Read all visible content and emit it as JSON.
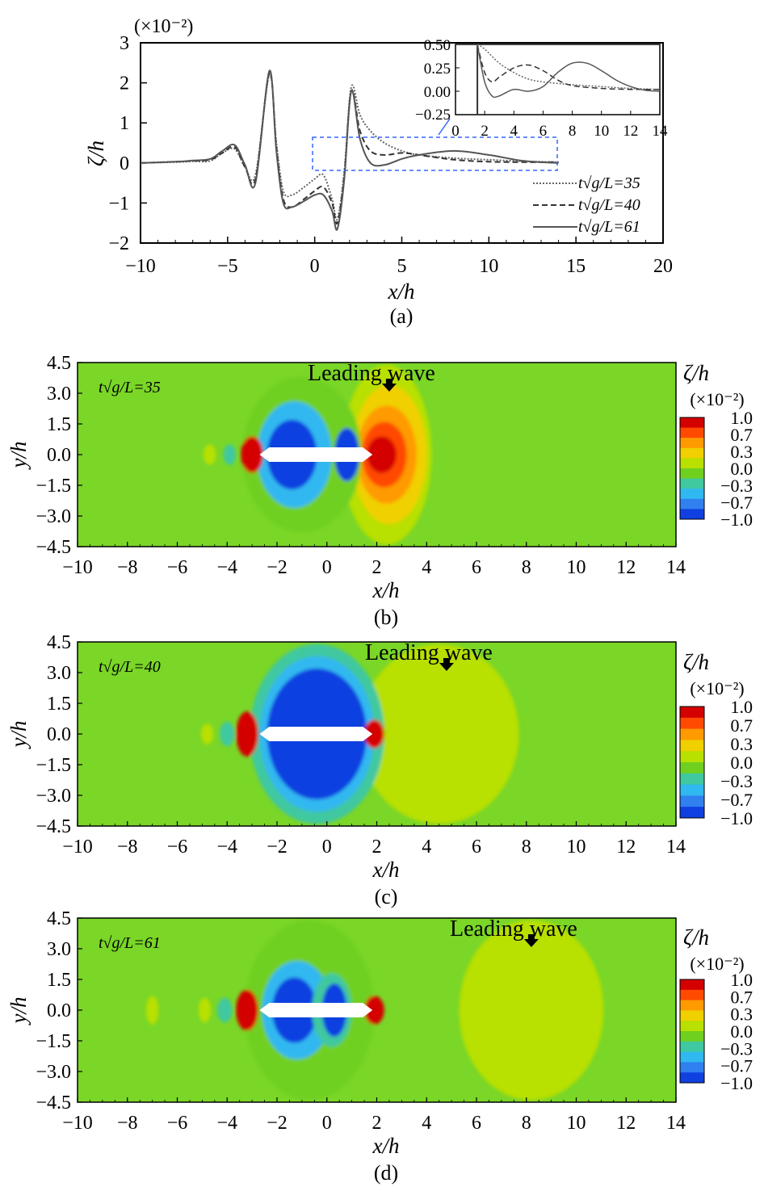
{
  "panels_a": {
    "caption": "(a)",
    "scale_note": "(×10⁻²)",
    "xlabel": "x/h",
    "ylabel": "ζ/h",
    "x_ticks": [
      "−10",
      "−5",
      "0",
      "5",
      "10",
      "15",
      "20"
    ],
    "y_ticks": [
      "3",
      "2",
      "1",
      "0",
      "−1",
      "−2"
    ],
    "inset_x_ticks": [
      "0",
      "2",
      "4",
      "6",
      "8",
      "10",
      "12",
      "14"
    ],
    "inset_y_ticks": [
      "0.50",
      "0.25",
      "0.00",
      "−0.25"
    ],
    "legend": [
      "t√g/L=35",
      "t√g/L=40",
      "t√g/L=61"
    ]
  },
  "contour_panels": [
    {
      "caption": "(b)",
      "time_label": "t√g/L=35",
      "leading_wave": "Leading wave",
      "xlabel": "x/h",
      "ylabel": "y/h"
    },
    {
      "caption": "(c)",
      "time_label": "t√g/L=40",
      "leading_wave": "Leading wave",
      "xlabel": "x/h",
      "ylabel": "y/h"
    },
    {
      "caption": "(d)",
      "time_label": "t√g/L=61",
      "leading_wave": "Leading wave",
      "xlabel": "x/h",
      "ylabel": "y/h"
    }
  ],
  "contour_axes": {
    "x_ticks": [
      "−10",
      "−8",
      "−6",
      "−4",
      "−2",
      "0",
      "2",
      "4",
      "6",
      "8",
      "10",
      "12",
      "14"
    ],
    "y_ticks": [
      "4.5",
      "3.0",
      "1.5",
      "0.0",
      "−1.5",
      "−3.0",
      "−4.5"
    ]
  },
  "colorbar": {
    "title": "ζ/h",
    "scale": "(×10⁻²)",
    "labels": [
      "1.0",
      "0.7",
      "0.3",
      "0.0",
      "−0.3",
      "−0.7",
      "−1.0"
    ],
    "colors": [
      "#d40000",
      "#ff4a00",
      "#ff9a00",
      "#f0d000",
      "#b8e000",
      "#6fd020",
      "#40c8a0",
      "#30b8f0",
      "#3080f0",
      "#1040e0"
    ]
  },
  "chart_data": [
    {
      "type": "line",
      "panel": "(a)",
      "xlabel": "x/h",
      "ylabel": "ζ/h",
      "y_scale_factor": "×10⁻²",
      "xlim": [
        -10,
        20
      ],
      "ylim": [
        -2,
        3
      ],
      "series": [
        {
          "name": "t√g/L=35",
          "style": "dotted",
          "x": [
            -10,
            -8,
            -7,
            -6,
            -5.3,
            -4.6,
            -4,
            -3.4,
            -2.6,
            -2.2,
            -1.8,
            -1.3,
            -0.6,
            0,
            0.5,
            1,
            1.3,
            1.7,
            2.1,
            2.6,
            3.2,
            4,
            5,
            6,
            8,
            10,
            12,
            14
          ],
          "y": [
            0,
            0.02,
            0.04,
            0.05,
            0.25,
            0.35,
            -0.1,
            -0.3,
            2.2,
            0.5,
            -0.7,
            -0.8,
            -0.6,
            -0.4,
            -0.3,
            -0.9,
            -1.4,
            -0.2,
            1.9,
            1.2,
            0.8,
            0.5,
            0.3,
            0.2,
            0.12,
            0.08,
            0.04,
            0.02
          ]
        },
        {
          "name": "t√g/L=40",
          "style": "dashed",
          "x": [
            -10,
            -8,
            -7,
            -6,
            -5.3,
            -4.6,
            -4,
            -3.4,
            -2.6,
            -2.2,
            -1.8,
            -1.3,
            -0.6,
            0,
            0.5,
            1,
            1.3,
            1.7,
            2.1,
            2.6,
            3.2,
            4,
            5,
            6,
            8,
            10,
            12,
            14
          ],
          "y": [
            0,
            0.03,
            0.05,
            0.08,
            0.25,
            0.4,
            -0.1,
            -0.4,
            2.25,
            0.4,
            -0.9,
            -1.1,
            -0.9,
            -0.7,
            -0.6,
            -1.0,
            -1.5,
            -0.3,
            1.8,
            0.8,
            0.3,
            0.2,
            0.25,
            0.2,
            0.08,
            0.03,
            0.02,
            0.02
          ]
        },
        {
          "name": "t√g/L=61",
          "style": "solid",
          "x": [
            -10,
            -8,
            -7,
            -6,
            -5.3,
            -4.6,
            -4,
            -3.4,
            -2.6,
            -2.2,
            -1.8,
            -1.3,
            -0.6,
            0,
            0.5,
            1,
            1.3,
            1.7,
            2.1,
            2.6,
            3.2,
            4,
            5,
            6,
            8,
            10,
            12,
            14
          ],
          "y": [
            0,
            0.03,
            0.06,
            0.1,
            0.3,
            0.45,
            -0.05,
            -0.5,
            2.3,
            0.3,
            -1.0,
            -1.1,
            -0.95,
            -0.8,
            -0.8,
            -1.2,
            -1.65,
            -0.4,
            1.8,
            0.6,
            0.0,
            -0.05,
            0.1,
            0.2,
            0.3,
            0.2,
            0.05,
            0.0
          ]
        }
      ]
    },
    {
      "type": "line",
      "panel": "(a) inset",
      "xlim": [
        0,
        14
      ],
      "ylim": [
        -0.25,
        0.5
      ],
      "series": [
        {
          "name": "t√g/L=35",
          "style": "dotted",
          "x": [
            1.5,
            2,
            3,
            4,
            5,
            6,
            8,
            10,
            12,
            14
          ],
          "y": [
            0.5,
            0.45,
            0.3,
            0.2,
            0.13,
            0.1,
            0.07,
            0.05,
            0.03,
            0.02
          ]
        },
        {
          "name": "t√g/L=40",
          "style": "dashed",
          "x": [
            1.5,
            2,
            2.5,
            3,
            4,
            5,
            6,
            7,
            8,
            10,
            12,
            14
          ],
          "y": [
            0.5,
            0.2,
            0.1,
            0.15,
            0.25,
            0.28,
            0.22,
            0.12,
            0.06,
            0.03,
            0.02,
            0.02
          ]
        },
        {
          "name": "t√g/L=61",
          "style": "solid",
          "x": [
            1.5,
            2,
            2.5,
            3,
            4,
            5,
            6,
            7,
            8,
            9,
            10,
            11,
            12,
            13,
            14
          ],
          "y": [
            0.5,
            0.1,
            -0.05,
            -0.05,
            0.02,
            0.0,
            0.05,
            0.2,
            0.3,
            0.3,
            0.22,
            0.12,
            0.05,
            0.01,
            0.0
          ]
        }
      ]
    },
    {
      "type": "heatmap",
      "panel": "(b)",
      "time": 35,
      "xlabel": "x/h",
      "ylabel": "y/h",
      "xlim": [
        -10,
        14
      ],
      "ylim": [
        -4.5,
        4.5
      ],
      "leading_wave_x": 2.5,
      "features": [
        {
          "x": 2.4,
          "y": 0,
          "rx": 1.8,
          "ry": 4.4,
          "level": 0.15
        },
        {
          "x": 2.5,
          "y": 0,
          "rx": 1.5,
          "ry": 3.4,
          "level": 0.35
        },
        {
          "x": 2.4,
          "y": 0,
          "rx": 1.2,
          "ry": 2.4,
          "level": 0.55
        },
        {
          "x": 2.3,
          "y": 0,
          "rx": 0.9,
          "ry": 1.6,
          "level": 0.75
        },
        {
          "x": 2.2,
          "y": 0,
          "rx": 0.6,
          "ry": 0.9,
          "level": 1.0
        },
        {
          "x": -1.0,
          "y": 0,
          "rx": 2.4,
          "ry": 3.8,
          "level": -0.2
        },
        {
          "x": -1.3,
          "y": 0,
          "rx": 1.5,
          "ry": 2.6,
          "level": -0.5
        },
        {
          "x": -1.4,
          "y": 0,
          "rx": 1.0,
          "ry": 1.7,
          "level": -1.0
        },
        {
          "x": 0.8,
          "y": 0,
          "rx": 0.5,
          "ry": 1.3,
          "level": -0.9
        },
        {
          "x": -3.0,
          "y": 0,
          "rx": 0.45,
          "ry": 0.9,
          "level": 1.0
        },
        {
          "x": -3.9,
          "y": 0,
          "rx": 0.25,
          "ry": 0.5,
          "level": -0.3
        },
        {
          "x": -4.7,
          "y": 0,
          "rx": 0.25,
          "ry": 0.5,
          "level": 0.2
        }
      ]
    },
    {
      "type": "heatmap",
      "panel": "(c)",
      "time": 40,
      "xlabel": "x/h",
      "ylabel": "y/h",
      "xlim": [
        -10,
        14
      ],
      "ylim": [
        -4.5,
        4.5
      ],
      "leading_wave_x": 4.8,
      "features": [
        {
          "x": 4.5,
          "y": 0,
          "rx": 3.2,
          "ry": 4.4,
          "level": 0.12
        },
        {
          "x": 4.6,
          "y": 0,
          "rx": 2.2,
          "ry": 3.0,
          "level": 0.22
        },
        {
          "x": -0.4,
          "y": 0,
          "rx": 2.7,
          "ry": 4.4,
          "level": -0.25
        },
        {
          "x": -0.4,
          "y": 0,
          "rx": 2.3,
          "ry": 3.8,
          "level": -0.55
        },
        {
          "x": -0.4,
          "y": 0,
          "rx": 2.0,
          "ry": 3.2,
          "level": -0.9
        },
        {
          "x": 1.9,
          "y": 0,
          "rx": 0.4,
          "ry": 0.7,
          "level": 1.0
        },
        {
          "x": -3.2,
          "y": 0,
          "rx": 0.45,
          "ry": 1.1,
          "level": 1.0
        },
        {
          "x": -4.0,
          "y": 0,
          "rx": 0.3,
          "ry": 0.6,
          "level": -0.3
        },
        {
          "x": -4.8,
          "y": 0,
          "rx": 0.25,
          "ry": 0.5,
          "level": 0.2
        }
      ]
    },
    {
      "type": "heatmap",
      "panel": "(d)",
      "time": 61,
      "xlabel": "x/h",
      "ylabel": "y/h",
      "xlim": [
        -10,
        14
      ],
      "ylim": [
        -4.5,
        4.5
      ],
      "leading_wave_x": 8.2,
      "features": [
        {
          "x": 8.2,
          "y": 0,
          "rx": 2.9,
          "ry": 4.4,
          "level": 0.1
        },
        {
          "x": 8.2,
          "y": 0,
          "rx": 1.0,
          "ry": 2.0,
          "level": 0.2
        },
        {
          "x": -0.7,
          "y": 0,
          "rx": 2.6,
          "ry": 4.4,
          "level": -0.15
        },
        {
          "x": -1.2,
          "y": 0,
          "rx": 1.4,
          "ry": 2.4,
          "level": -0.5
        },
        {
          "x": -1.3,
          "y": 0,
          "rx": 0.9,
          "ry": 1.6,
          "level": -1.0
        },
        {
          "x": 0.2,
          "y": 0,
          "rx": 0.8,
          "ry": 1.8,
          "level": -0.4
        },
        {
          "x": 0.3,
          "y": 0,
          "rx": 0.5,
          "ry": 1.3,
          "level": -1.0
        },
        {
          "x": 1.9,
          "y": 0,
          "rx": 0.4,
          "ry": 0.7,
          "level": 1.0
        },
        {
          "x": -3.2,
          "y": 0,
          "rx": 0.45,
          "ry": 1.0,
          "level": 1.0
        },
        {
          "x": -4.1,
          "y": 0,
          "rx": 0.3,
          "ry": 0.6,
          "level": -0.3
        },
        {
          "x": -4.9,
          "y": 0,
          "rx": 0.25,
          "ry": 0.6,
          "level": 0.2
        },
        {
          "x": -7.0,
          "y": 0,
          "rx": 0.25,
          "ry": 0.7,
          "level": 0.1
        }
      ]
    }
  ]
}
